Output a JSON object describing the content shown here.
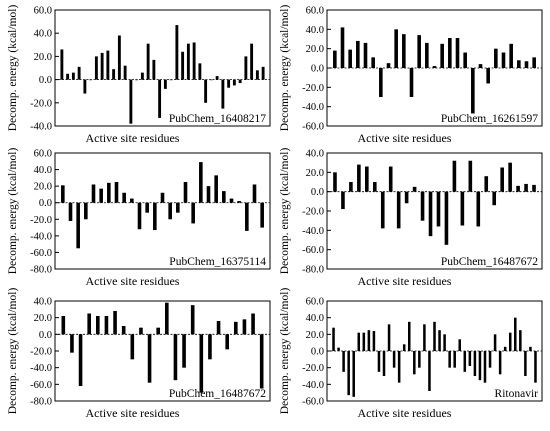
{
  "colors": {
    "bar": "#000000",
    "axis": "#000000",
    "background": "#ffffff"
  },
  "chart_data": [
    {
      "type": "bar",
      "ylabel": "Decomp. energy (kcal/mol)",
      "xlabel": "Active site residues",
      "annotation": "PubChem_16408217",
      "ylim": [
        -40,
        60
      ],
      "yticks": [
        -40,
        -20,
        0,
        20,
        40,
        60
      ],
      "yticklabels": [
        "-40.0",
        "-20.0",
        "0.0",
        "20.0",
        "40.0",
        "60.0"
      ],
      "values": [
        26,
        5,
        6,
        11,
        -12,
        0,
        20,
        23,
        25,
        9,
        38,
        12,
        -38,
        0,
        6,
        31,
        17,
        -33,
        -8,
        0,
        47,
        24,
        31,
        32,
        14,
        -20,
        0,
        3,
        -25,
        -7,
        -5,
        -3,
        20,
        31,
        8,
        11
      ]
    },
    {
      "type": "bar",
      "ylabel": "Decomp. energy (kcal/mol)",
      "xlabel": "Active site residues",
      "annotation": "PubChem_16261597",
      "ylim": [
        -60,
        60
      ],
      "yticks": [
        -60,
        -40,
        -20,
        0,
        20,
        40,
        60
      ],
      "yticklabels": [
        "-60.0",
        "-40.0",
        "-20.0",
        "0.0",
        "20.0",
        "40.0",
        "60.0"
      ],
      "values": [
        18,
        42,
        19,
        28,
        26,
        11,
        -30,
        5,
        40,
        35,
        -30,
        34,
        26,
        2,
        25,
        31,
        31,
        16,
        -47,
        4,
        -16,
        20,
        16,
        25,
        8,
        7,
        11
      ]
    },
    {
      "type": "bar",
      "ylabel": "Decomp. energy (kcal/mol)",
      "xlabel": "Active site residues",
      "annotation": "PubChem_16375114",
      "ylim": [
        -80,
        60
      ],
      "yticks": [
        -80,
        -60,
        -40,
        -20,
        0,
        20,
        40,
        60
      ],
      "yticklabels": [
        "-80.0",
        "-60.0",
        "-40.0",
        "-20.0",
        "0.0",
        "20.0",
        "40.0",
        "60.0"
      ],
      "values": [
        21,
        -22,
        -55,
        -20,
        22,
        17,
        24,
        25,
        12,
        5,
        -32,
        -12,
        -33,
        12,
        -20,
        -12,
        25,
        -25,
        49,
        20,
        33,
        14,
        5,
        2,
        -34,
        22,
        -30
      ]
    },
    {
      "type": "bar",
      "ylabel": "Decomp. energy (kcal/mol)",
      "xlabel": "Active site residues",
      "annotation": "PubChem_16487672",
      "ylim": [
        -80,
        40
      ],
      "yticks": [
        -80,
        -60,
        -40,
        -20,
        0,
        20,
        40
      ],
      "yticklabels": [
        "-80.0",
        "-60.0",
        "-40.0",
        "-20.0",
        "0.0",
        "20.0",
        "40.0"
      ],
      "values": [
        20,
        -18,
        10,
        28,
        26,
        10,
        -38,
        26,
        -38,
        -12,
        5,
        -30,
        -46,
        -36,
        -55,
        32,
        -35,
        32,
        -36,
        16,
        -14,
        25,
        30,
        6,
        8,
        7
      ]
    },
    {
      "type": "bar",
      "ylabel": "Decomp. energy (kcal/mol)",
      "xlabel": "Active site residues",
      "annotation": "PubChem_16487672",
      "ylim": [
        -80,
        40
      ],
      "yticks": [
        -80,
        -60,
        -40,
        -20,
        0,
        20,
        40
      ],
      "yticklabels": [
        "-80.0",
        "-60.0",
        "-40.0",
        "-20.0",
        "0.0",
        "20.0",
        "40.0"
      ],
      "values": [
        22,
        -22,
        -62,
        25,
        22,
        22,
        28,
        10,
        -30,
        8,
        -58,
        8,
        38,
        -55,
        -40,
        35,
        -70,
        -30,
        16,
        -18,
        15,
        18,
        25,
        -65
      ]
    },
    {
      "type": "bar",
      "ylabel": "Decomp. energy (kcal/mol)",
      "xlabel": "Active site residues",
      "annotation": "Ritonavir",
      "ylim": [
        -60,
        60
      ],
      "yticks": [
        -60,
        -40,
        -20,
        0,
        20,
        40,
        60
      ],
      "yticklabels": [
        "-60.0",
        "-40.0",
        "-20.0",
        "0.0",
        "20.0",
        "40.0",
        "60.0"
      ],
      "values": [
        28,
        4,
        -25,
        -53,
        -55,
        22,
        22,
        25,
        24,
        -25,
        -30,
        32,
        -20,
        -38,
        8,
        35,
        -28,
        -20,
        32,
        -48,
        35,
        25,
        20,
        -20,
        -20,
        14,
        -25,
        -18,
        -30,
        -35,
        -38,
        -20,
        20,
        -28,
        5,
        22,
        40,
        25,
        -30,
        5,
        -38
      ]
    }
  ]
}
